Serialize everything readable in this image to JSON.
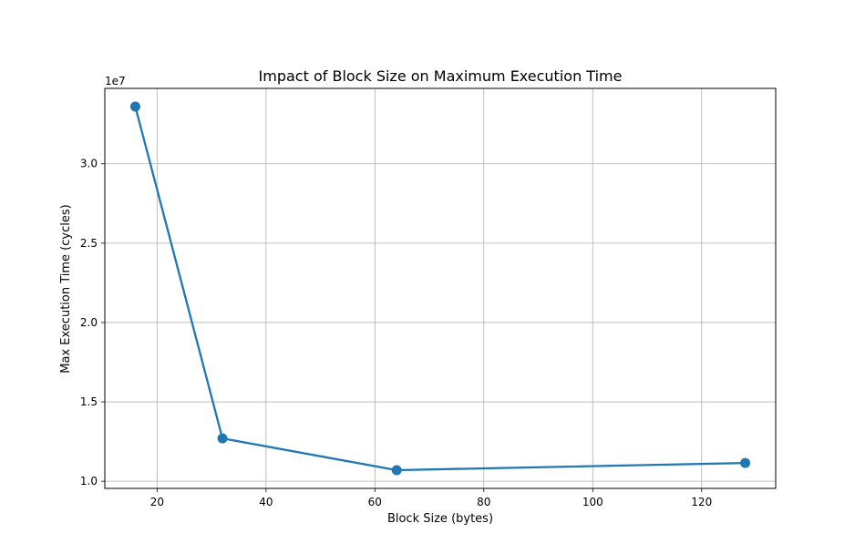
{
  "chart_data": {
    "type": "line",
    "title": "Impact of Block Size on Maximum Execution Time",
    "xlabel": "Block Size (bytes)",
    "ylabel": "Max Execution Time (cycles)",
    "y_offset_label": "1e7",
    "x": [
      16,
      32,
      64,
      128
    ],
    "series": [
      {
        "values": [
          33600000,
          12700000,
          10700000,
          11150000
        ]
      }
    ],
    "xlim": [
      10.4,
      133.6
    ],
    "ylim": [
      9550000,
      34750000
    ],
    "x_ticks": [
      20,
      40,
      60,
      80,
      100,
      120
    ],
    "x_tick_labels": [
      "20",
      "40",
      "60",
      "80",
      "100",
      "120"
    ],
    "y_ticks": [
      10000000,
      15000000,
      20000000,
      25000000,
      30000000
    ],
    "y_tick_labels": [
      "1.0",
      "1.5",
      "2.0",
      "2.5",
      "3.0"
    ],
    "grid": true,
    "legend": "none",
    "line_color": "#1f77b4"
  }
}
